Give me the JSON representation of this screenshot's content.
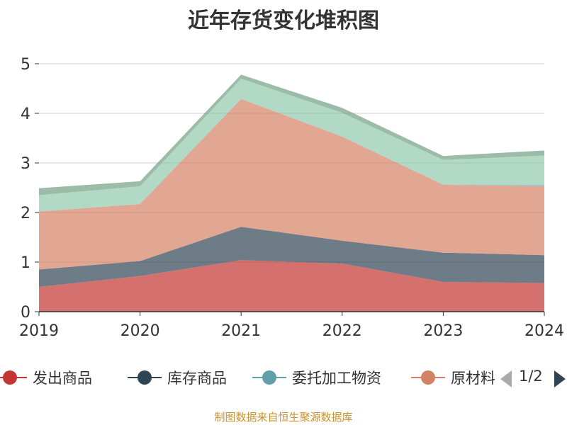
{
  "chart_data": {
    "type": "area",
    "stacked": true,
    "title": "近年存货变化堆积图",
    "categories": [
      "2019",
      "2020",
      "2021",
      "2022",
      "2023",
      "2024"
    ],
    "ylim": [
      0,
      5
    ],
    "yticks": [
      "0",
      "1",
      "2",
      "3",
      "4",
      "5"
    ],
    "grid": true,
    "legend_position": "bottom",
    "series": [
      {
        "name": "发出商品",
        "color": "#c23531",
        "values": [
          0.5,
          0.72,
          1.04,
          0.97,
          0.6,
          0.58
        ]
      },
      {
        "name": "库存商品",
        "color": "#2f4554",
        "values": [
          0.35,
          0.3,
          0.67,
          0.46,
          0.59,
          0.56
        ]
      },
      {
        "name": "原材料",
        "color": "#d48265",
        "values": [
          1.17,
          1.15,
          2.58,
          2.1,
          1.37,
          1.39
        ]
      },
      {
        "name": "委托加工物资",
        "color": "#61a0a8",
        "values": [
          0.0,
          0.0,
          0.0,
          0.0,
          0.0,
          0.02
        ]
      },
      {
        "name": "",
        "color": "#91c7ae",
        "values": [
          0.33,
          0.36,
          0.41,
          0.48,
          0.5,
          0.6
        ]
      },
      {
        "name": "",
        "color": "#749f83",
        "values": [
          0.14,
          0.1,
          0.08,
          0.1,
          0.08,
          0.1
        ]
      }
    ]
  },
  "legend": {
    "items": [
      "发出商品",
      "库存商品",
      "委托加工物资",
      "原材料"
    ],
    "page_indicator": "1/2"
  },
  "source_note": "制图数据来自恒生聚源数据库"
}
